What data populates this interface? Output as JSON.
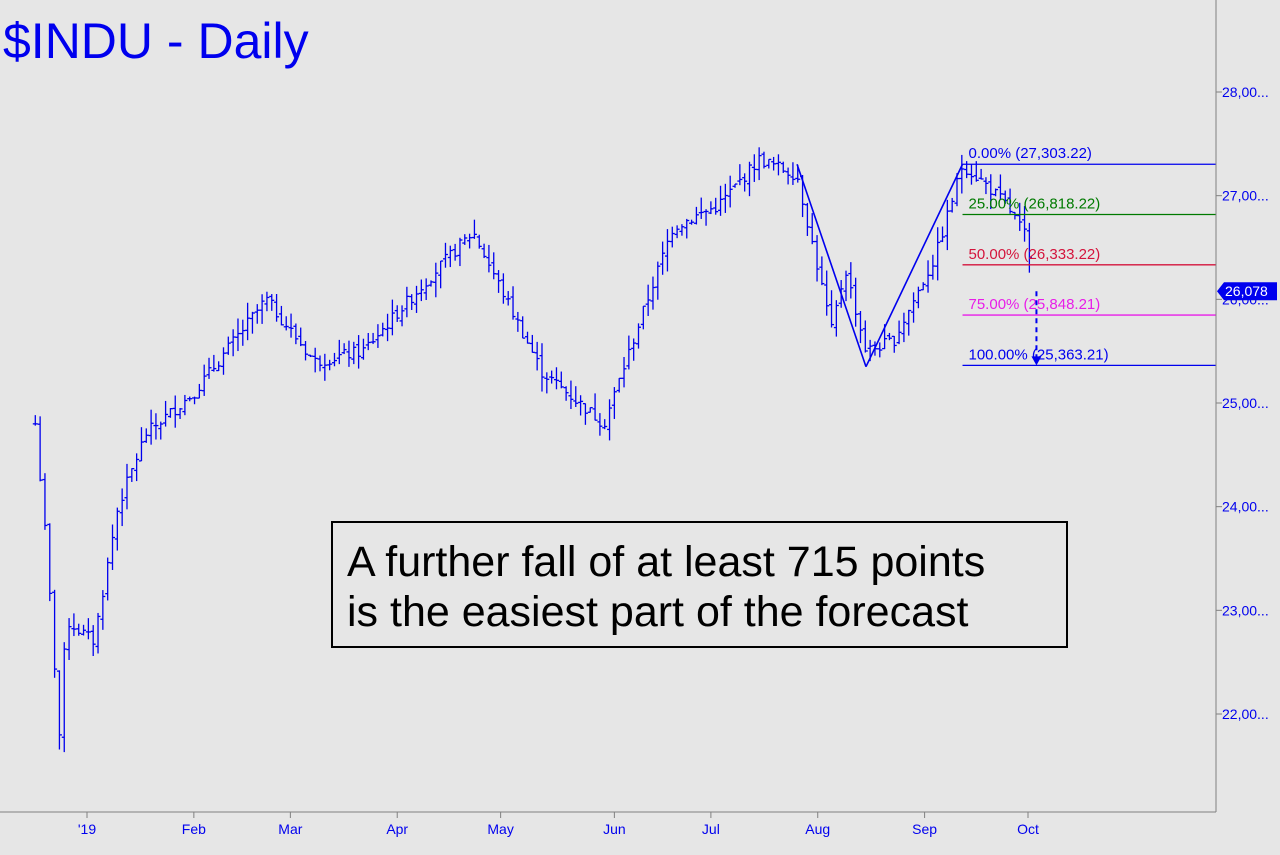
{
  "chart_data": {
    "type": "ohlc",
    "title": "$INDU - Daily",
    "ylim": [
      21200,
      28700
    ],
    "y_ticks": [
      22000,
      23000,
      24000,
      25000,
      26000,
      27000,
      28000
    ],
    "y_tick_labels": [
      "22,00...",
      "23,00...",
      "24,00...",
      "25,00...",
      "26,00...",
      "27,00...",
      "28,00..."
    ],
    "x_months": [
      "'19",
      "Feb",
      "Mar",
      "Apr",
      "May",
      "Jun",
      "Jul",
      "Aug",
      "Sep",
      "Oct"
    ],
    "last_price": 26078,
    "last_price_label": "26,078",
    "price_path": [
      {
        "date": "2018-12-17",
        "close": 24800
      },
      {
        "date": "2018-12-20",
        "close": 23700
      },
      {
        "date": "2018-12-24",
        "close": 21800
      },
      {
        "date": "2018-12-26",
        "close": 22900
      },
      {
        "date": "2019-01-03",
        "close": 22700
      },
      {
        "date": "2019-01-10",
        "close": 24000
      },
      {
        "date": "2019-01-18",
        "close": 24700
      },
      {
        "date": "2019-02-01",
        "close": 25100
      },
      {
        "date": "2019-02-22",
        "close": 26000
      },
      {
        "date": "2019-03-08",
        "close": 25400
      },
      {
        "date": "2019-03-22",
        "close": 25500
      },
      {
        "date": "2019-04-10",
        "close": 26200
      },
      {
        "date": "2019-04-23",
        "close": 26650
      },
      {
        "date": "2019-05-13",
        "close": 25300
      },
      {
        "date": "2019-05-31",
        "close": 24800
      },
      {
        "date": "2019-06-20",
        "close": 26700
      },
      {
        "date": "2019-07-03",
        "close": 26900
      },
      {
        "date": "2019-07-15",
        "close": 27350
      },
      {
        "date": "2019-07-26",
        "close": 27200
      },
      {
        "date": "2019-08-05",
        "close": 25700
      },
      {
        "date": "2019-08-09",
        "close": 26300
      },
      {
        "date": "2019-08-15",
        "close": 25500
      },
      {
        "date": "2019-08-23",
        "close": 25600
      },
      {
        "date": "2019-09-04",
        "close": 26400
      },
      {
        "date": "2019-09-12",
        "close": 27300
      },
      {
        "date": "2019-09-19",
        "close": 27100
      },
      {
        "date": "2019-09-25",
        "close": 26900
      },
      {
        "date": "2019-10-01",
        "close": 26570
      },
      {
        "date": "2019-10-02",
        "close": 26078
      }
    ],
    "abc_pattern": [
      {
        "date": "2019-07-26",
        "value": 27303
      },
      {
        "date": "2019-08-15",
        "value": 25350
      },
      {
        "date": "2019-09-12",
        "value": 27303.22
      }
    ],
    "retracements": [
      {
        "label": "0.00% (27,303.22)",
        "value": 27303.22,
        "color": "#0000ee"
      },
      {
        "label": "25.00% (26,818.22)",
        "value": 26818.22,
        "color": "#007a00"
      },
      {
        "label": "50.00% (26,333.22)",
        "value": 26333.22,
        "color": "#d4143c"
      },
      {
        "label": "75.00% (25,848.21)",
        "value": 25848.21,
        "color": "#e81ee8"
      },
      {
        "label": "100.00% (25,363.21)",
        "value": 25363.21,
        "color": "#0000ee"
      }
    ],
    "projection": {
      "from_date": "2019-10-02",
      "from": 26078,
      "to": 25363.21
    }
  },
  "callout": {
    "line1": "A further fall of at least 715 points",
    "line2": "is the easiest part of the forecast"
  },
  "colors": {
    "series": "#0000ee",
    "background": "#e6e6e6",
    "axis": "#808080",
    "price_tag_bg": "#0000ee",
    "price_tag_text": "#ffffff"
  }
}
